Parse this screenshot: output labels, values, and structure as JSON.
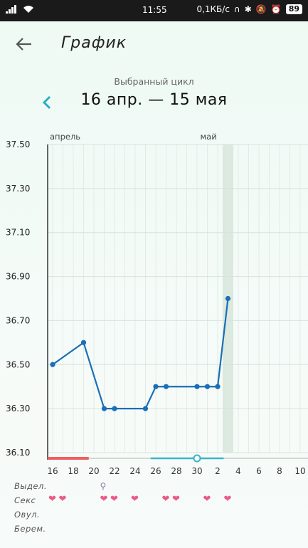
{
  "status": {
    "time": "11:55",
    "speed": "0,1КБ/с",
    "battery": "89"
  },
  "header": {
    "title": "График"
  },
  "cycle": {
    "label": "Выбранный цикл",
    "range": "16 апр. — 15 мая"
  },
  "chart_data": {
    "type": "line",
    "y_ticks": [
      "37.50",
      "37.30",
      "37.10",
      "36.90",
      "36.70",
      "36.50",
      "36.30",
      "36.10"
    ],
    "ylim": [
      36.1,
      37.5
    ],
    "x_ticks": [
      "16",
      "18",
      "20",
      "22",
      "24",
      "26",
      "28",
      "30",
      "2",
      "4",
      "6",
      "8",
      "10"
    ],
    "month_labels": [
      {
        "label": "апрель",
        "day": 0
      },
      {
        "label": "май",
        "day": 15
      }
    ],
    "series": [
      {
        "color": "#1a6fb6",
        "points": [
          {
            "day": 0,
            "value": 36.5
          },
          {
            "day": 3,
            "value": 36.6
          },
          {
            "day": 5,
            "value": 36.3
          },
          {
            "day": 6,
            "value": 36.3
          },
          {
            "day": 9,
            "value": 36.3
          },
          {
            "day": 10,
            "value": 36.4
          },
          {
            "day": 11,
            "value": 36.4
          },
          {
            "day": 14,
            "value": 36.4
          },
          {
            "day": 15,
            "value": 36.4
          },
          {
            "day": 16,
            "value": 36.4
          },
          {
            "day": 17,
            "value": 36.8
          }
        ]
      }
    ],
    "highlight_day": 17,
    "period_days": [
      0,
      3.5
    ],
    "fertile_days": [
      9.5,
      17
    ],
    "ovulation_day": 14
  },
  "rows": {
    "labels": [
      "Выдел.",
      "Секс",
      "Овул.",
      "Берем."
    ],
    "discharge_days": [
      5
    ],
    "sex_days": [
      0,
      1,
      5,
      6,
      8,
      11,
      12,
      15,
      17
    ]
  },
  "colors": {
    "line": "#1a6fb6",
    "period": "#ef5f5f",
    "fertile": "#3bb3c9",
    "heart": "#ec5a86",
    "highlight": "#dbe9df"
  },
  "icons": {
    "back": "arrow-left-icon",
    "prev_cycle": "chevron-left-icon",
    "discharge": "drop-icon",
    "sex": "heart-icon"
  }
}
